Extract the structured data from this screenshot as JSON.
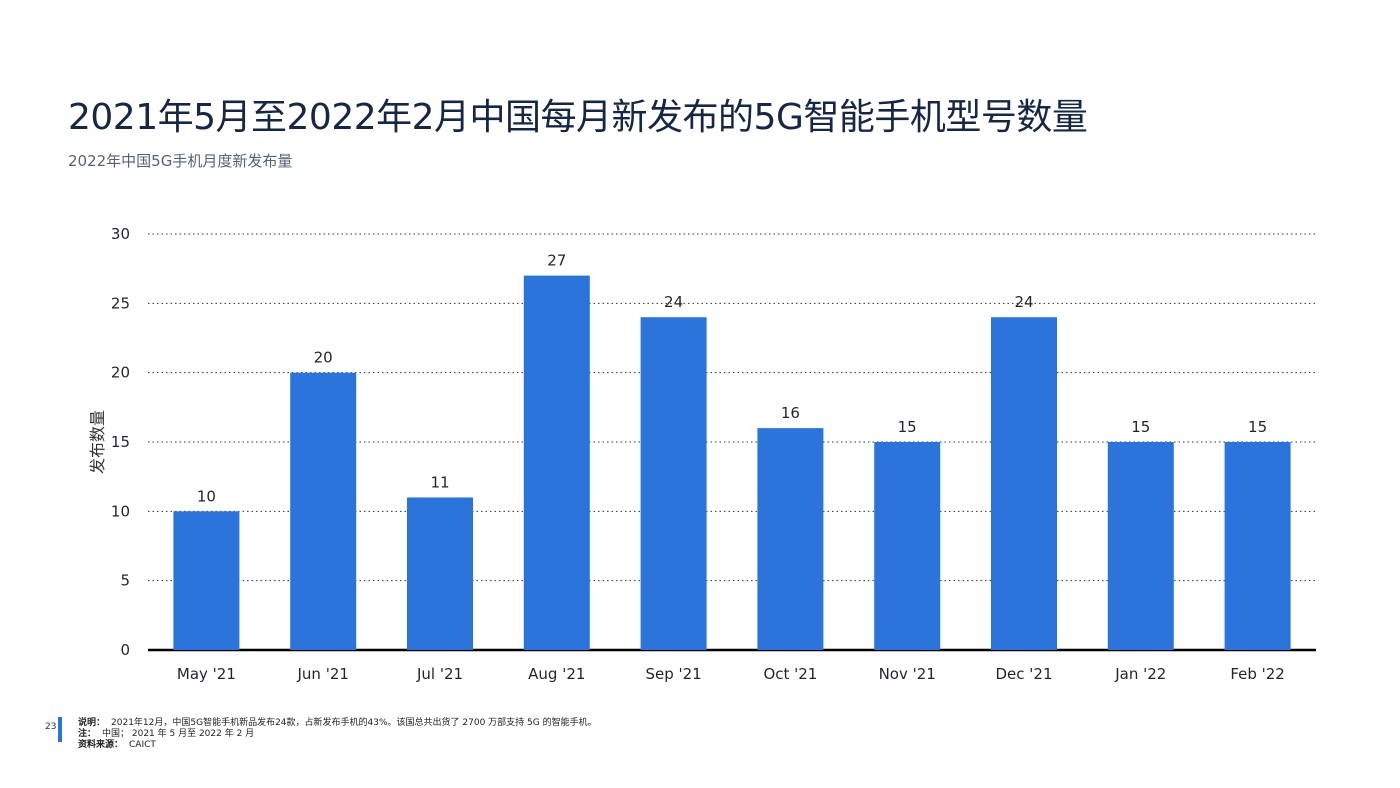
{
  "title": "2021年5月至2022年2月中国每月新发布的5G智能手机型号数量",
  "subtitle": "2022年中国5G手机月度新发布量",
  "colors": {
    "bar": "#2a74dc",
    "title": "#152744",
    "grid": "#333333"
  },
  "chart_data": {
    "type": "bar",
    "categories": [
      "May '21",
      "Jun '21",
      "Jul '21",
      "Aug '21",
      "Sep '21",
      "Oct '21",
      "Nov '21",
      "Dec '21",
      "Jan '22",
      "Feb '22"
    ],
    "values": [
      10,
      20,
      11,
      27,
      24,
      16,
      15,
      24,
      15,
      15
    ],
    "ylabel": "发布数量",
    "ylim": [
      0,
      30
    ],
    "yticks": [
      0,
      5,
      10,
      15,
      20,
      25,
      30
    ],
    "grid": true,
    "data_labels": true
  },
  "footer": {
    "page_number": "23",
    "note_label": "说明：",
    "note_text": "2021年12月，中国5G智能手机新品发布24款，占新发布手机的43%。该国总共出货了 2700 万部支持 5G 的智能手机。",
    "scope_label": "注：",
    "scope_text": "中国； 2021 年 5 月至 2022 年 2 月",
    "source_label": "资料来源：",
    "source_text": "CAICT"
  }
}
